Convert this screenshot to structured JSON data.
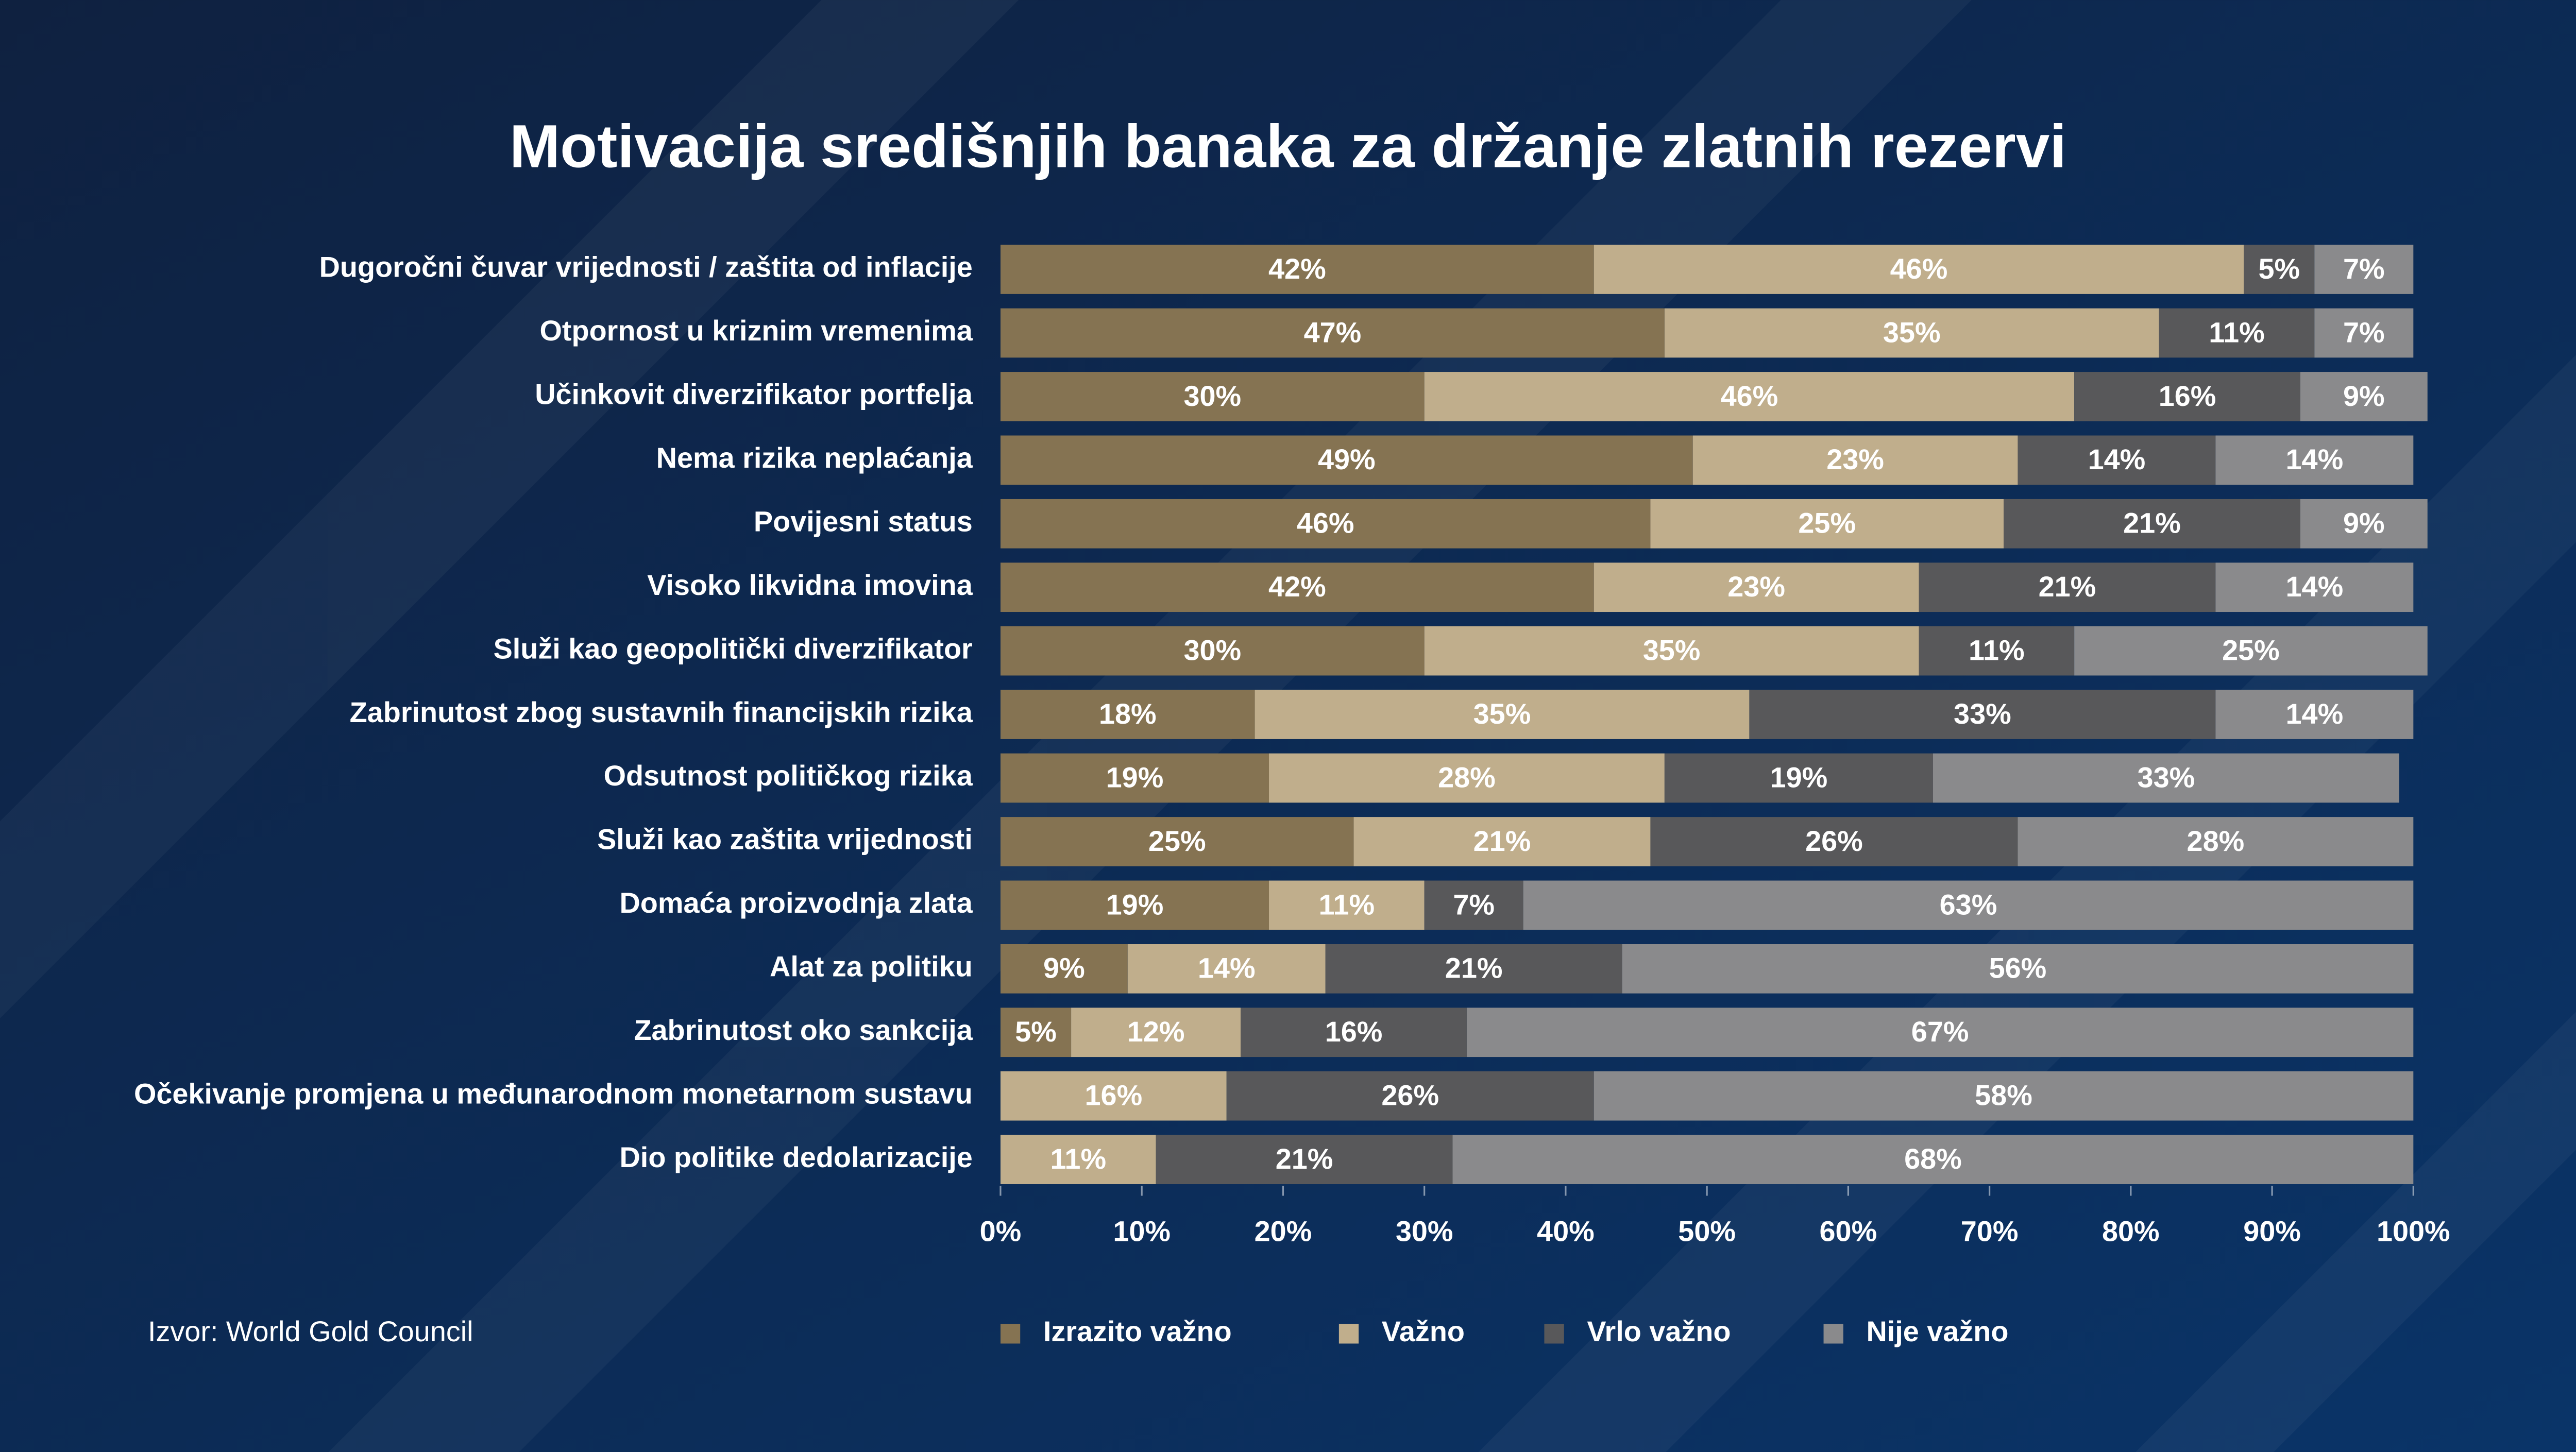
{
  "chart_data": {
    "type": "stacked-barh",
    "title": "Motivacija središnjih banaka za držanje zlatnih rezervi",
    "source": "Izvor: World Gold Council",
    "categories": [
      "Dugoročni čuvar vrijednosti / zaštita od inflacije",
      "Otpornost u kriznim vremenima",
      "Učinkovit diverzifikator portfelja",
      "Nema rizika neplaćanja",
      "Povijesni status",
      "Visoko likvidna imovina",
      "Služi kao geopolitički diverzifikator",
      "Zabrinutost zbog sustavnih financijskih rizika",
      "Odsutnost političkog rizika",
      "Služi kao zaštita vrijednosti",
      "Domaća proizvodnja zlata",
      "Alat za politiku",
      "Zabrinutost oko sankcija",
      "Očekivanje promjena u međunarodnom monetarnom sustavu",
      "Dio politike dedolarizacije"
    ],
    "series": [
      {
        "name": "Izrazito važno",
        "color": "#857352",
        "values": [
          42,
          47,
          30,
          49,
          46,
          42,
          30,
          18,
          19,
          25,
          19,
          9,
          5,
          null,
          null
        ],
        "value_labels": [
          "42%",
          "47%",
          "30%",
          "49%",
          "46%",
          "42%",
          "30%",
          "18%",
          "19%",
          "25%",
          "19%",
          "9%",
          "5%",
          null,
          null
        ]
      },
      {
        "name": "Važno",
        "color": "#c0ae8c",
        "values": [
          46,
          35,
          46,
          23,
          25,
          23,
          35,
          35,
          28,
          21,
          11,
          14,
          12,
          16,
          11
        ],
        "value_labels": [
          "46%",
          "35%",
          "46%",
          "23%",
          "25%",
          "23%",
          "35%",
          "35%",
          "28%",
          "21%",
          "11%",
          "14%",
          "12%",
          "16%",
          "11%"
        ]
      },
      {
        "name": "Vrlo važno",
        "color": "#58585a",
        "values": [
          5,
          11,
          16,
          14,
          21,
          21,
          11,
          33,
          19,
          26,
          7,
          21,
          16,
          26,
          21
        ],
        "value_labels": [
          "5%",
          "11%",
          "16%",
          "14%",
          "21%",
          "21%",
          "11%",
          "33%",
          "19%",
          "26%",
          "7%",
          "21%",
          "16%",
          "26%",
          "21%"
        ]
      },
      {
        "name": "Nije važno",
        "color": "#8a8a8c",
        "values": [
          7,
          7,
          9,
          14,
          9,
          14,
          25,
          14,
          33,
          28,
          63,
          56,
          67,
          58,
          68
        ],
        "value_labels": [
          "7%",
          "7%",
          "9%",
          "14%",
          "9%",
          "14%",
          "25%",
          "14%",
          "33%",
          "28%",
          "63%",
          "56%",
          "67%",
          "58%",
          "68%"
        ]
      }
    ],
    "xlim": [
      0,
      100
    ],
    "xticks": [
      {
        "value": 0,
        "label": "0%"
      },
      {
        "value": 10,
        "label": "10%"
      },
      {
        "value": 20,
        "label": "20%"
      },
      {
        "value": 30,
        "label": "30%"
      },
      {
        "value": 40,
        "label": "40%"
      },
      {
        "value": 50,
        "label": "50%"
      },
      {
        "value": 60,
        "label": "60%"
      },
      {
        "value": 70,
        "label": "70%"
      },
      {
        "value": 80,
        "label": "80%"
      },
      {
        "value": 90,
        "label": "90%"
      },
      {
        "value": 100,
        "label": "100%"
      }
    ]
  }
}
